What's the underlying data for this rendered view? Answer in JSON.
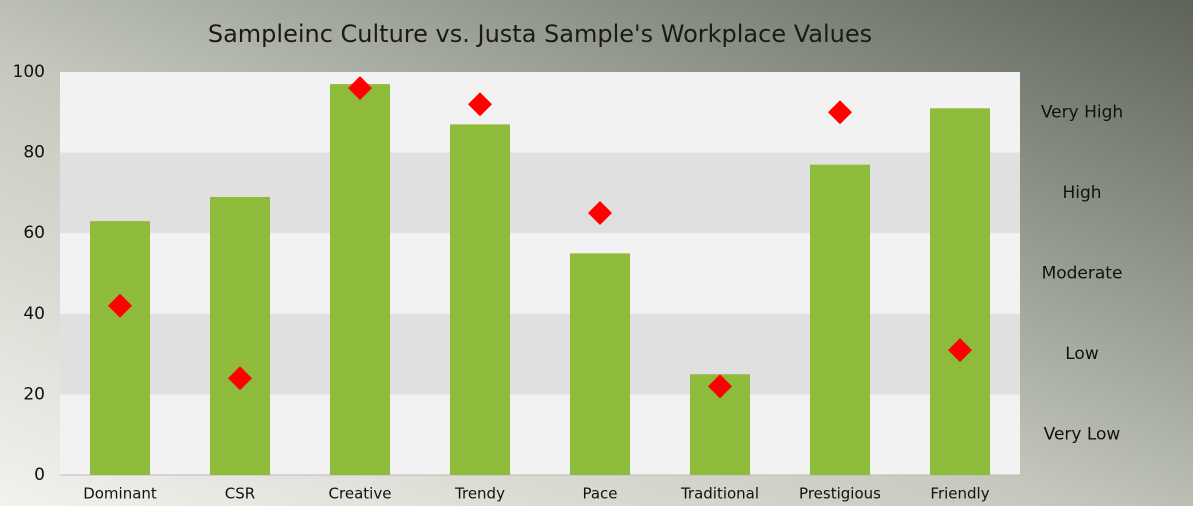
{
  "chart_data": {
    "type": "bar",
    "title": "Sampleinc Culture vs. Justa Sample's Workplace Values",
    "categories": [
      "Dominant",
      "CSR",
      "Creative",
      "Trendy",
      "Pace",
      "Traditional",
      "Prestigious",
      "Friendly"
    ],
    "series": [
      {
        "type": "bar",
        "color": "#8fbb3a",
        "values": [
          63,
          69,
          97,
          87,
          55,
          25,
          77,
          91
        ]
      },
      {
        "type": "diamond",
        "color": "#ff0000",
        "values": [
          42,
          24,
          96,
          92,
          65,
          22,
          90,
          31
        ]
      }
    ],
    "ylim": [
      0,
      100
    ],
    "yticks": [
      0,
      20,
      40,
      60,
      80,
      100
    ],
    "y2lim": [
      0,
      100
    ],
    "y2ticks": [
      {
        "value": 10,
        "label": "Very Low"
      },
      {
        "value": 30,
        "label": "Low"
      },
      {
        "value": 50,
        "label": "Moderate"
      },
      {
        "value": 70,
        "label": "High"
      },
      {
        "value": 90,
        "label": "Very High"
      }
    ],
    "grid": true,
    "bands": true
  }
}
